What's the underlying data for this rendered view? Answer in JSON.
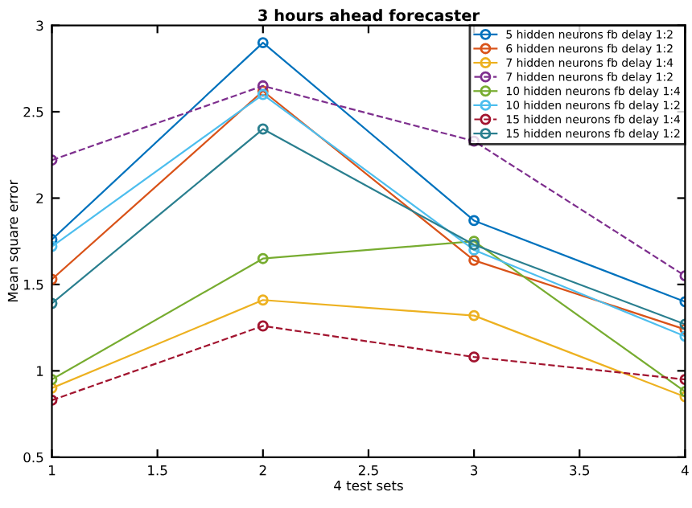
{
  "chart_data": {
    "type": "line",
    "title": "3 hours ahead forecaster",
    "xlabel": "4 test sets",
    "ylabel": "Mean square error",
    "x": [
      1,
      2,
      3,
      4
    ],
    "xlim": [
      1,
      4
    ],
    "xticks": [
      1,
      1.5,
      2,
      2.5,
      3,
      3.5,
      4
    ],
    "ylim": [
      0.5,
      3
    ],
    "yticks": [
      0.5,
      1,
      1.5,
      2,
      2.5,
      3
    ],
    "grid": false,
    "legend": "top right",
    "marker": "circle",
    "series": [
      {
        "name": "5 hidden neurons fb delay 1:2",
        "color": "#0072bd",
        "values": [
          1.76,
          2.9,
          1.87,
          1.4
        ],
        "line_style": "solid"
      },
      {
        "name": "6 hidden neurons fb delay 1:2",
        "color": "#d95319",
        "values": [
          1.53,
          2.62,
          1.64,
          1.24
        ],
        "line_style": "solid"
      },
      {
        "name": "7 hidden neurons fb delay 1:4",
        "color": "#edb120",
        "values": [
          0.9,
          1.41,
          1.32,
          0.85
        ],
        "line_style": "solid"
      },
      {
        "name": "7 hidden neurons fb delay 1:2",
        "color": "#7e2f8e",
        "values": [
          2.22,
          2.65,
          2.33,
          1.55
        ],
        "line_style": "dashed"
      },
      {
        "name": "10 hidden neurons fb delay 1:4",
        "color": "#77ac30",
        "values": [
          0.95,
          1.65,
          1.75,
          0.88
        ],
        "line_style": "solid"
      },
      {
        "name": "10 hidden neurons fb delay 1:2",
        "color": "#4dbeee",
        "values": [
          1.72,
          2.6,
          1.7,
          1.2
        ],
        "line_style": "solid"
      },
      {
        "name": "15 hidden neurons fb delay 1:4",
        "color": "#a2142f",
        "values": [
          0.83,
          1.26,
          1.08,
          0.95
        ],
        "line_style": "dashed"
      },
      {
        "name": "15 hidden neurons fb delay 1:2",
        "color": "#2a7f8f",
        "values": [
          1.39,
          2.4,
          1.73,
          1.27
        ],
        "line_style": "solid"
      }
    ]
  }
}
